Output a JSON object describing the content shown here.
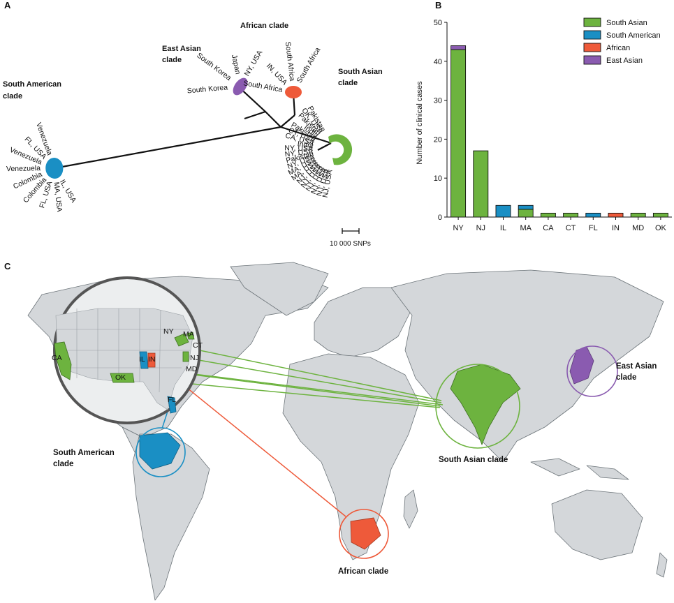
{
  "panels": {
    "a": "A",
    "b": "B",
    "c": "C"
  },
  "colors": {
    "south_asian": "#6db33f",
    "south_american": "#1a8fc4",
    "african": "#ee5a3a",
    "east_asian": "#8a5bb0",
    "land": "#d4d7da",
    "ocean": "#ffffff",
    "border": "#6c7479"
  },
  "tree": {
    "clades": {
      "south_american": [
        "South American",
        "clade"
      ],
      "east_asian": [
        "East Asian",
        "clade"
      ],
      "african": "African clade",
      "south_asian": [
        "South Asian",
        "clade"
      ]
    },
    "leaves": {
      "south_american": [
        "Venezuela",
        "FL, USA",
        "Venezuela",
        "Venezuela",
        "Colombia",
        "Colombia",
        "FL, USA",
        "MA, USA",
        "IL, USA"
      ],
      "east_asian": [
        "NY, USA",
        "Japan",
        "South Korea",
        "South Korea"
      ],
      "african": [
        "South Africa",
        "South Africa",
        "IN, USA",
        "South Africa"
      ],
      "south_asian_top": [
        "Pakistan",
        "OK, USA",
        "Pakistan",
        "India",
        "Pakistan",
        "CT, USA",
        "CA, USA",
        "India",
        "NY, USA",
        "NY, USA",
        "Pakistan",
        "NY, USA",
        "MA, USA",
        "MA, USA",
        "NJ, USA",
        "NJ, USA",
        "NJ, USA",
        "NJ, USA",
        "NJ, USA",
        "NJ, USA"
      ]
    },
    "scale": "10 000 SNPs"
  },
  "chart_data": {
    "type": "bar",
    "stacked": true,
    "categories": [
      "NY",
      "NJ",
      "IL",
      "MA",
      "CA",
      "CT",
      "FL",
      "IN",
      "MD",
      "OK"
    ],
    "series": [
      {
        "name": "South Asian",
        "color": "#6db33f",
        "values": [
          43,
          17,
          0,
          2,
          1,
          1,
          0,
          0,
          1,
          1
        ]
      },
      {
        "name": "South American",
        "color": "#1a8fc4",
        "values": [
          0,
          0,
          3,
          1,
          0,
          0,
          1,
          0,
          0,
          0
        ]
      },
      {
        "name": "African",
        "color": "#ee5a3a",
        "values": [
          0,
          0,
          0,
          0,
          0,
          0,
          0,
          1,
          0,
          0
        ]
      },
      {
        "name": "East Asian",
        "color": "#8a5bb0",
        "values": [
          1,
          0,
          0,
          0,
          0,
          0,
          0,
          0,
          0,
          0
        ]
      }
    ],
    "ylabel": "Number of clinical cases",
    "xlabel": "",
    "ylim": [
      0,
      50
    ],
    "yticks": [
      0,
      10,
      20,
      30,
      40,
      50
    ],
    "legend_position": "top-right"
  },
  "map": {
    "states": [
      "NY",
      "MA",
      "CA",
      "IL",
      "IN",
      "CT",
      "NJ",
      "MD",
      "OK",
      "FL"
    ],
    "clades": {
      "south_american": [
        "South American",
        "clade"
      ],
      "east_asian": [
        "East Asian",
        "clade"
      ],
      "african": "African clade",
      "south_asian": "South Asian clade"
    }
  }
}
